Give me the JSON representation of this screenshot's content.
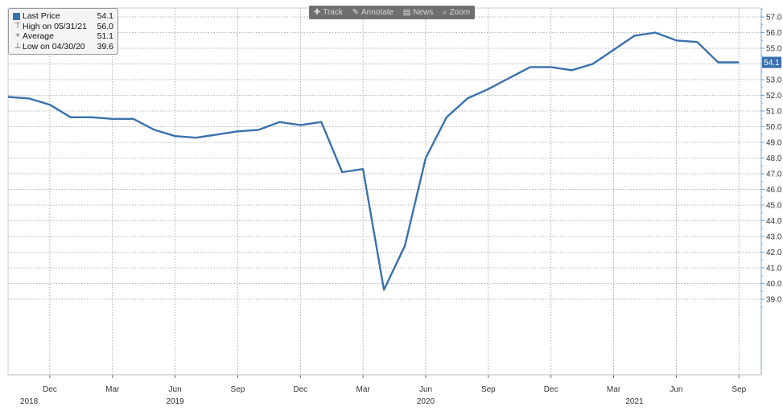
{
  "toolbar": {
    "items": [
      {
        "label": "Track",
        "icon": "crosshair-icon",
        "glyph": "✚"
      },
      {
        "label": "Annotate",
        "icon": "pencil-icon",
        "glyph": "✎"
      },
      {
        "label": "News",
        "icon": "news-icon",
        "glyph": "▤"
      },
      {
        "label": "Zoom",
        "icon": "zoom-icon",
        "glyph": "⌕"
      }
    ]
  },
  "legend": {
    "last_price_label": "Last Price",
    "last_price_value": "54.1",
    "high_label": "High on 05/31/21",
    "high_value": "56.0",
    "average_label": "Average",
    "average_value": "51.1",
    "low_label": "Low on 04/30/20",
    "low_value": "39.6"
  },
  "colors": {
    "series": "#3a71ad",
    "grid": "#9a9a9a",
    "axis": "#6aa6d9"
  },
  "chart_data": {
    "type": "line",
    "series": [
      {
        "name": "Last Price",
        "x": [
          "2018-10",
          "2018-11",
          "2018-12",
          "2019-01",
          "2019-02",
          "2019-03",
          "2019-04",
          "2019-05",
          "2019-06",
          "2019-07",
          "2019-08",
          "2019-09",
          "2019-10",
          "2019-11",
          "2019-12",
          "2020-01",
          "2020-02",
          "2020-03",
          "2020-04",
          "2020-05",
          "2020-06",
          "2020-07",
          "2020-08",
          "2020-09",
          "2020-10",
          "2020-11",
          "2020-12",
          "2021-01",
          "2021-02",
          "2021-03",
          "2021-04",
          "2021-05",
          "2021-06",
          "2021-07",
          "2021-08",
          "2021-09"
        ],
        "values": [
          51.9,
          51.8,
          51.4,
          50.6,
          50.6,
          50.5,
          50.5,
          49.8,
          49.4,
          49.3,
          49.5,
          49.7,
          49.8,
          50.3,
          50.1,
          50.3,
          47.1,
          47.3,
          39.6,
          42.4,
          48.0,
          50.6,
          51.8,
          52.4,
          53.1,
          53.8,
          53.8,
          53.6,
          54.0,
          54.9,
          55.8,
          56.0,
          55.5,
          55.4,
          54.1,
          54.1
        ]
      }
    ],
    "last_value_label": "54.1",
    "y_ticks": [
      "57.0",
      "56.0",
      "55.0",
      "54.0",
      "53.0",
      "52.0",
      "51.0",
      "50.0",
      "49.0",
      "48.0",
      "47.0",
      "46.0",
      "45.0",
      "44.0",
      "43.0",
      "42.0",
      "41.0",
      "40.0",
      "39.0"
    ],
    "x_ticks": [
      {
        "x": "2018-12",
        "label": "Dec"
      },
      {
        "x": "2019-03",
        "label": "Mar"
      },
      {
        "x": "2019-06",
        "label": "Jun"
      },
      {
        "x": "2019-09",
        "label": "Sep"
      },
      {
        "x": "2019-12",
        "label": "Dec"
      },
      {
        "x": "2020-03",
        "label": "Mar"
      },
      {
        "x": "2020-06",
        "label": "Jun"
      },
      {
        "x": "2020-09",
        "label": "Sep"
      },
      {
        "x": "2020-12",
        "label": "Dec"
      },
      {
        "x": "2021-03",
        "label": "Mar"
      },
      {
        "x": "2021-06",
        "label": "Jun"
      },
      {
        "x": "2021-09",
        "label": "Sep"
      }
    ],
    "years": [
      {
        "x": "2018-10",
        "label": "2018"
      },
      {
        "x": "2019-06",
        "label": "2019"
      },
      {
        "x": "2020-06",
        "label": "2020"
      },
      {
        "x": "2021-04",
        "label": "2021"
      }
    ],
    "ylim": [
      38.0,
      57.5
    ],
    "grid": true,
    "legend_position": "top-left"
  }
}
